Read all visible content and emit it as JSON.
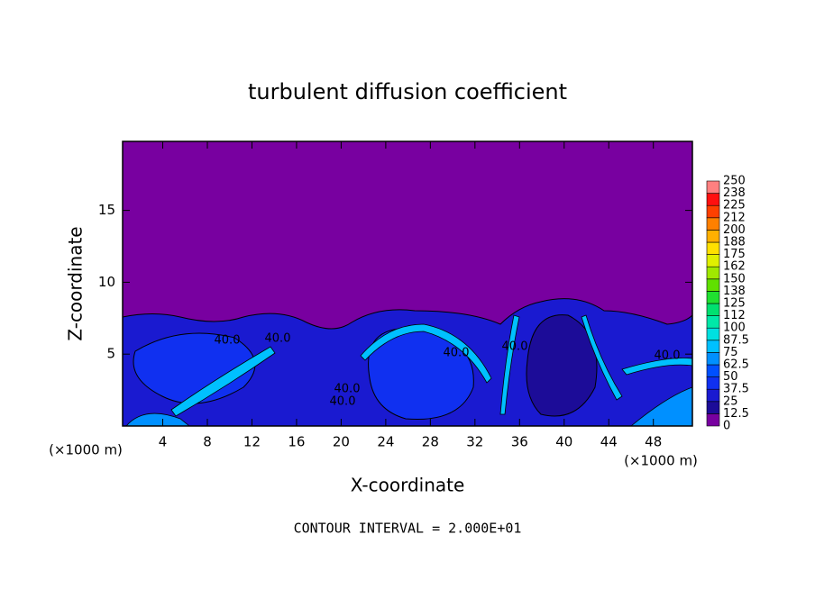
{
  "chart_data": {
    "type": "contour",
    "title": "turbulent diffusion coefficient",
    "x_label": "X-coordinate",
    "y_label": "Z-coordinate",
    "x_unit_left": "(×1000 m)",
    "x_unit_right": "(×1000 m)",
    "footer": "CONTOUR INTERVAL = 2.000E+01",
    "xlim": [
      0.4,
      51.5
    ],
    "xticks": [
      4,
      8,
      12,
      16,
      20,
      24,
      28,
      32,
      36,
      40,
      44,
      48
    ],
    "ylim": [
      0,
      19.8
    ],
    "yticks": [
      5,
      10,
      15
    ],
    "contour_labels": [
      "40.0",
      "40.0",
      "40.0",
      "40.0",
      "40.0",
      "40.0",
      "40.0"
    ],
    "colorbar": {
      "levels": [
        0,
        12.5,
        25,
        37.5,
        50,
        62.5,
        75,
        87.5,
        100,
        112,
        125,
        138,
        150,
        162,
        175,
        188,
        200,
        212,
        225,
        238,
        250
      ],
      "colors": [
        "#7800a0",
        "#1c0c98",
        "#1a1ad0",
        "#1030f0",
        "#0050ff",
        "#0090ff",
        "#00c0ff",
        "#00e0e0",
        "#00e8a8",
        "#00e070",
        "#20e030",
        "#60e000",
        "#a0e800",
        "#e0f000",
        "#ffe000",
        "#ffb000",
        "#ff8000",
        "#ff4000",
        "#ff1010",
        "#ff8080"
      ]
    }
  }
}
